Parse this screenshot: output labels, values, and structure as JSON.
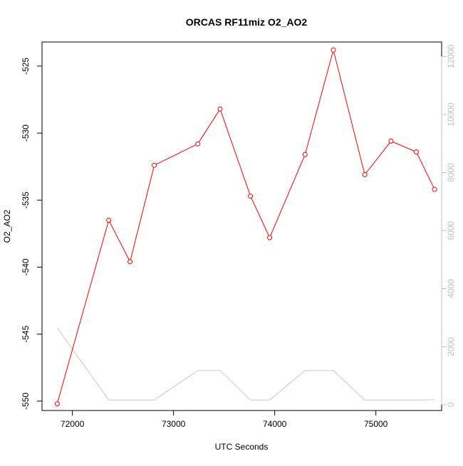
{
  "chart_data": {
    "type": "line",
    "title": "ORCAS RF11miz O2_AO2",
    "xlabel": "UTC Seconds",
    "ylabel": "O2_AO2",
    "y2label": "",
    "xlim": [
      71700,
      75650
    ],
    "ylim": [
      -550.7,
      -523.2
    ],
    "y2lim": [
      -200,
      12500
    ],
    "x_ticks": [
      72000,
      73000,
      74000,
      75000
    ],
    "y_ticks": [
      -550,
      -545,
      -540,
      -535,
      -530,
      -525
    ],
    "y2_ticks": [
      0,
      2000,
      4000,
      6000,
      8000,
      10000,
      12000
    ],
    "grid": false,
    "colors": {
      "primary": "#ff0000",
      "secondary": "#c8c8c8",
      "axis_right": "#c0c0c0"
    },
    "series": [
      {
        "axis": "left",
        "marker": "circle-open",
        "x": [
          71850,
          72360,
          72570,
          72810,
          73240,
          73460,
          73760,
          73950,
          74300,
          74580,
          74890,
          75150,
          75400,
          75580
        ],
        "y": [
          -550.2,
          -536.5,
          -539.6,
          -532.4,
          -530.8,
          -528.2,
          -534.7,
          -537.8,
          -531.6,
          -523.8,
          -533.1,
          -530.6,
          -531.4,
          -534.2
        ]
      },
      {
        "axis": "right",
        "marker": "none",
        "x": [
          71850,
          72360,
          72570,
          72810,
          73240,
          73460,
          73760,
          73950,
          74300,
          74580,
          74890,
          75150,
          75400,
          75580
        ],
        "y": [
          2650,
          160,
          160,
          160,
          1180,
          1180,
          160,
          160,
          1180,
          1180,
          160,
          160,
          160,
          170
        ]
      }
    ]
  }
}
